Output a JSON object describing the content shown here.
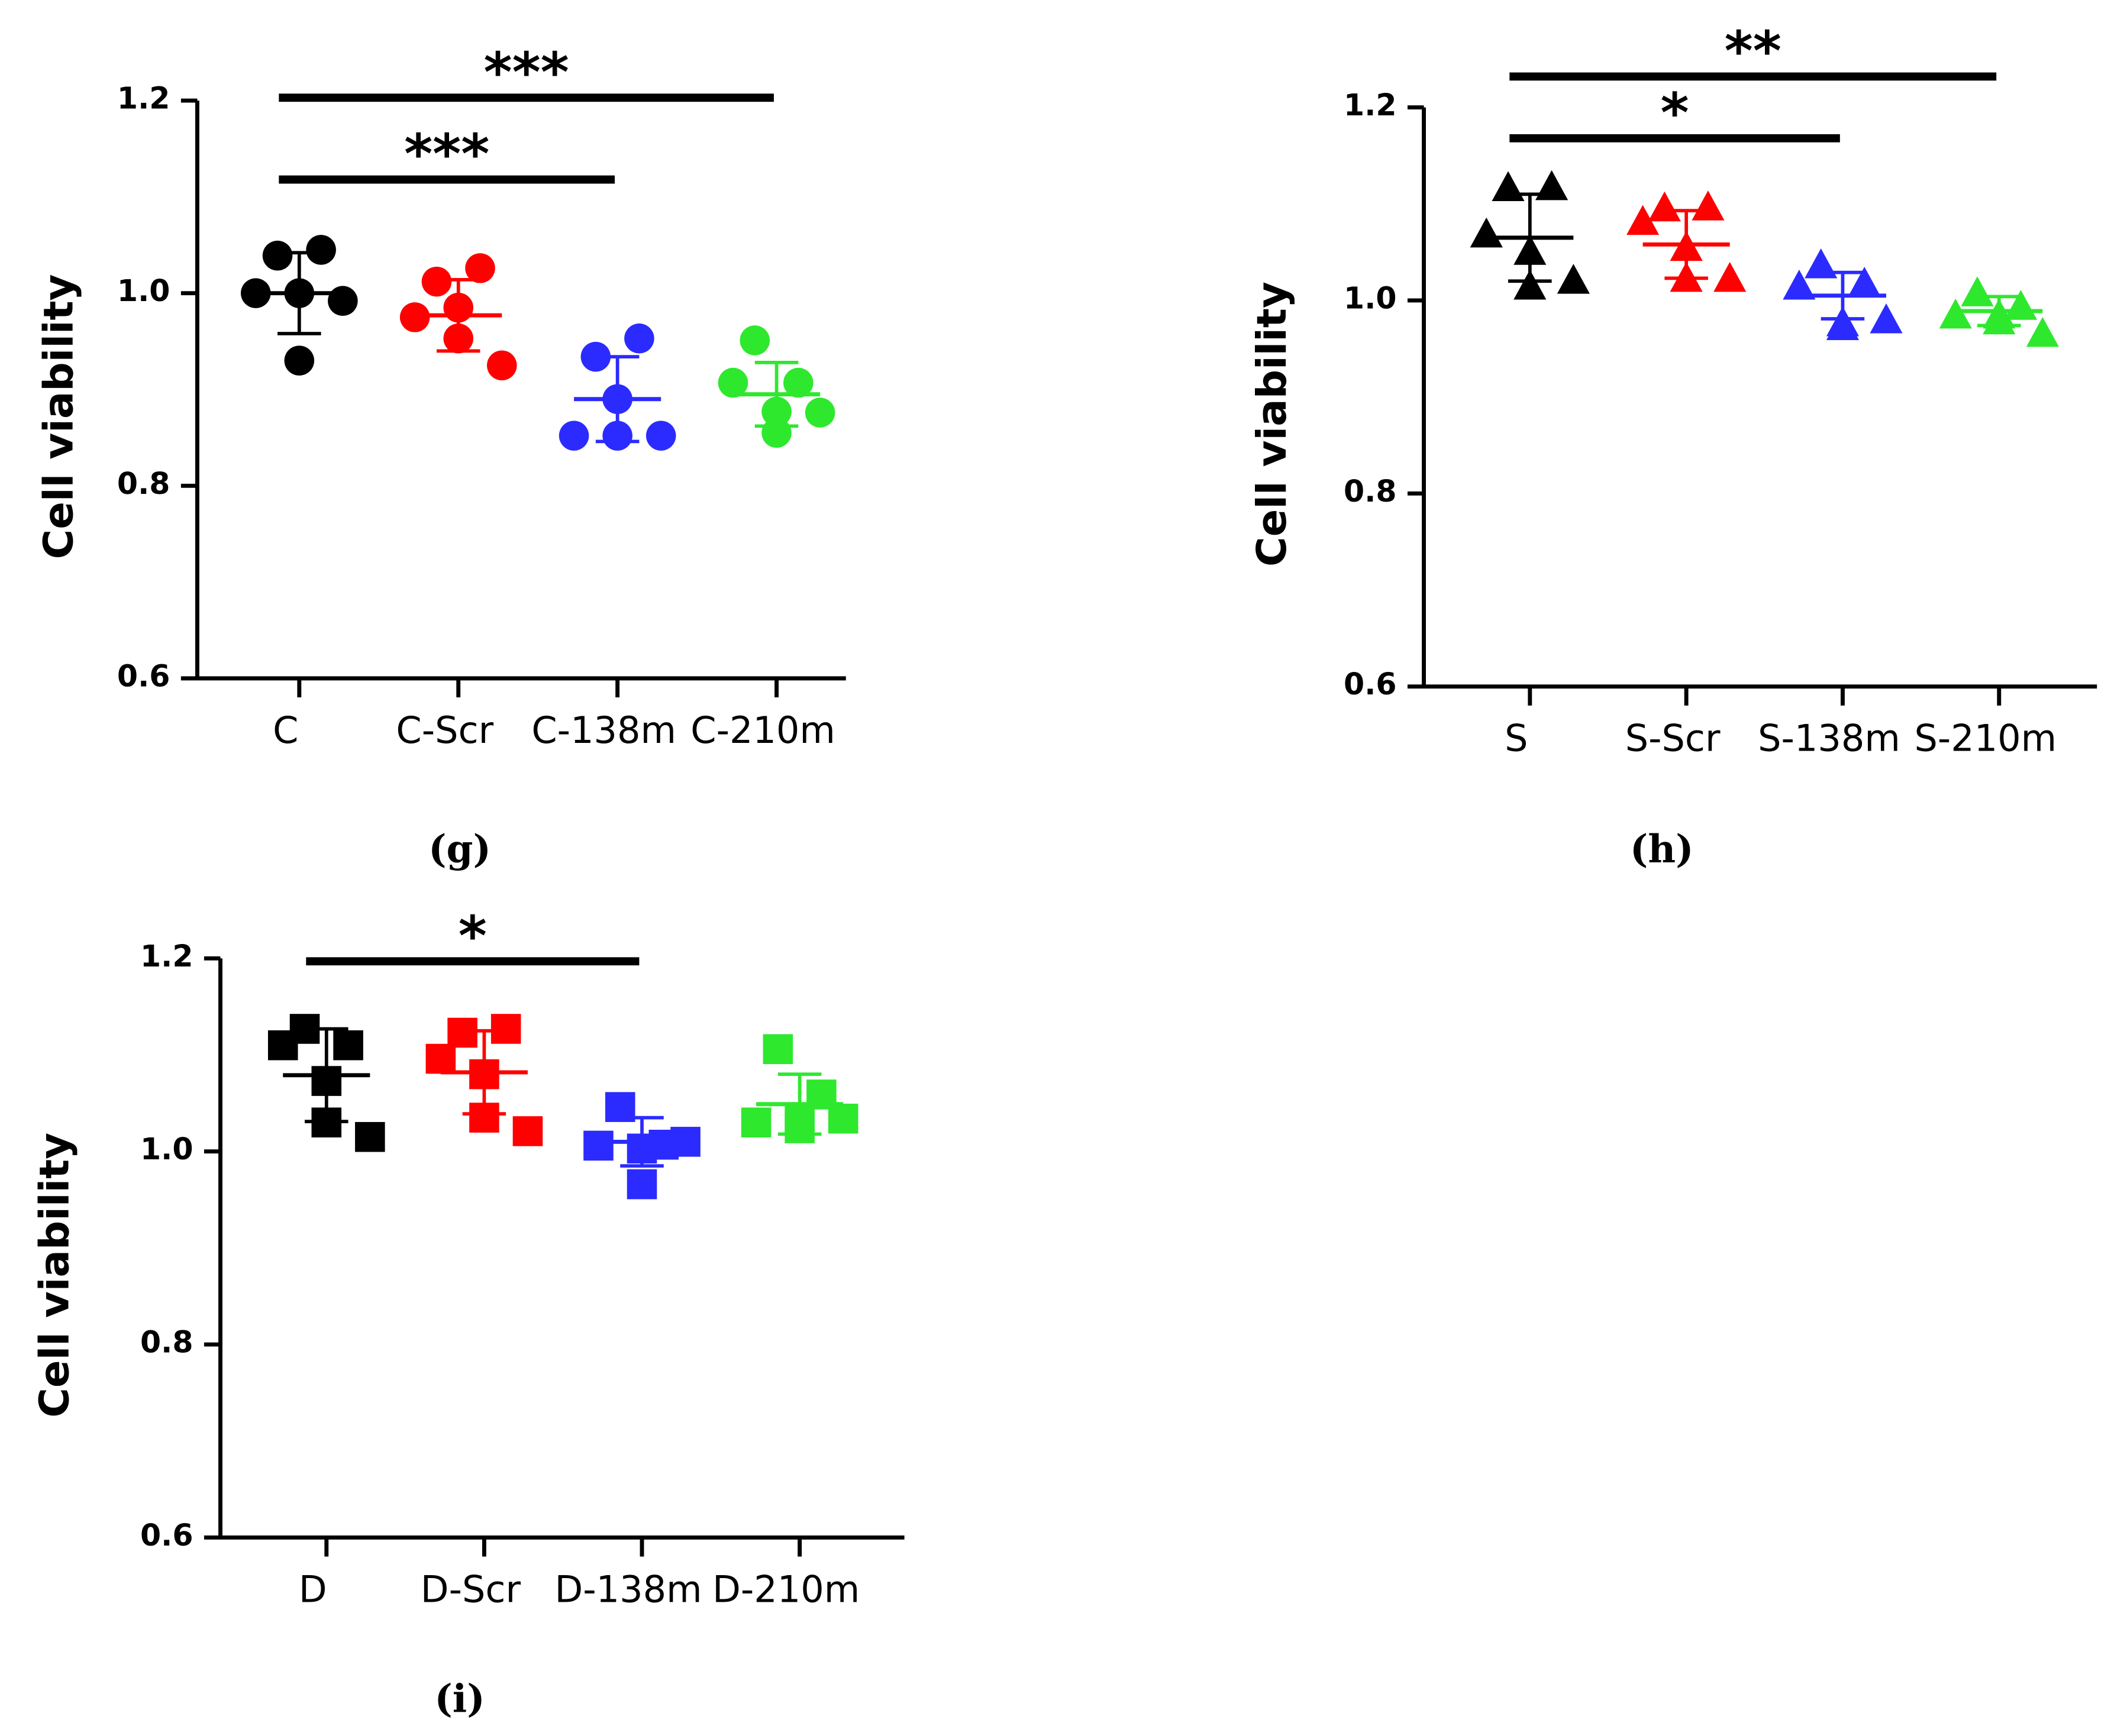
{
  "chart_data": [
    {
      "type": "scatter",
      "panel_label": "(g)",
      "y_label": "Cell viability",
      "marker": "circle",
      "categories": [
        "C",
        "C-Scr",
        "C-138m",
        "C-210m"
      ],
      "colors": [
        "#000000",
        "#ff0000",
        "#2b2bff",
        "#2ee82e"
      ],
      "values": [
        [
          1.039,
          1.045,
          1.0,
          1.0,
          0.992,
          0.93
        ],
        [
          1.012,
          1.026,
          0.975,
          0.985,
          0.925,
          0.953
        ],
        [
          0.934,
          0.953,
          0.852,
          0.852,
          0.852,
          0.89
        ],
        [
          0.951,
          0.907,
          0.907,
          0.855,
          0.876,
          0.877
        ]
      ],
      "means": [
        1.0,
        0.977,
        0.89,
        0.895
      ],
      "sd": [
        0.042,
        0.037,
        0.044,
        0.033
      ],
      "ylim": [
        0.6,
        1.2
      ],
      "yticks": [
        0.6,
        0.8,
        {
          "value": 1,
          "label": "1.0"
        },
        1.2
      ],
      "annotations": [
        {
          "text": "***",
          "y": 1.203,
          "from": "C",
          "to": "C-210m"
        },
        {
          "text": "***",
          "y": 1.118,
          "from": "C",
          "to": "C-138m"
        }
      ]
    },
    {
      "type": "scatter",
      "panel_label": "(h)",
      "y_label": "Cell viability",
      "marker": "triangle",
      "categories": [
        "S",
        "S-Scr",
        "S-138m",
        "S-210m"
      ],
      "colors": [
        "#000000",
        "#ff0000",
        "#2b2bff",
        "#2ee82e"
      ],
      "values": [
        [
          1.117,
          1.118,
          1.069,
          1.051,
          1.021,
          1.015
        ],
        [
          1.096,
          1.097,
          1.082,
          1.055,
          1.023,
          1.023
        ],
        [
          1.037,
          1.018,
          1.015,
          0.973,
          0.98,
          0.977
        ],
        [
          1.008,
          0.994,
          0.985,
          0.985,
          0.966,
          0.979
        ]
      ],
      "means": [
        1.065,
        1.058,
        1.005,
        0.989
      ],
      "sd": [
        0.045,
        0.035,
        0.024,
        0.015
      ],
      "ylim": [
        0.6,
        1.2
      ],
      "yticks": [
        0.6,
        0.8,
        {
          "value": 1,
          "label": "1.0"
        },
        1.2
      ],
      "annotations": [
        {
          "text": "**",
          "y": 1.232,
          "from": "S",
          "to": "S-210m"
        },
        {
          "text": "*",
          "y": 1.168,
          "from": "S",
          "to": "S-138m"
        }
      ]
    },
    {
      "type": "scatter",
      "panel_label": "(i)",
      "y_label": "Cell viability",
      "marker": "square",
      "categories": [
        "D",
        "D-Scr",
        "D-138m",
        "D-210m"
      ],
      "colors": [
        "#000000",
        "#ff0000",
        "#2b2bff",
        "#2ee82e"
      ],
      "values": [
        [
          1.127,
          1.11,
          1.11,
          1.073,
          1.015,
          1.03
        ],
        [
          1.123,
          1.127,
          1.096,
          1.08,
          1.021,
          1.035
        ],
        [
          1.046,
          1.007,
          1.006,
          1.003,
          1.01,
          0.966
        ],
        [
          1.106,
          1.059,
          1.03,
          1.024,
          1.034,
          1.034
        ]
      ],
      "means": [
        1.079,
        1.082,
        1.01,
        1.049
      ],
      "sd": [
        0.048,
        0.043,
        0.025,
        0.031
      ],
      "ylim": [
        0.6,
        1.2
      ],
      "yticks": [
        0.6,
        0.8,
        {
          "value": 1,
          "label": "1.0"
        },
        1.2
      ],
      "annotations": [
        {
          "text": "*",
          "y": 1.197,
          "from": "D",
          "to": "D-138m"
        }
      ]
    }
  ]
}
